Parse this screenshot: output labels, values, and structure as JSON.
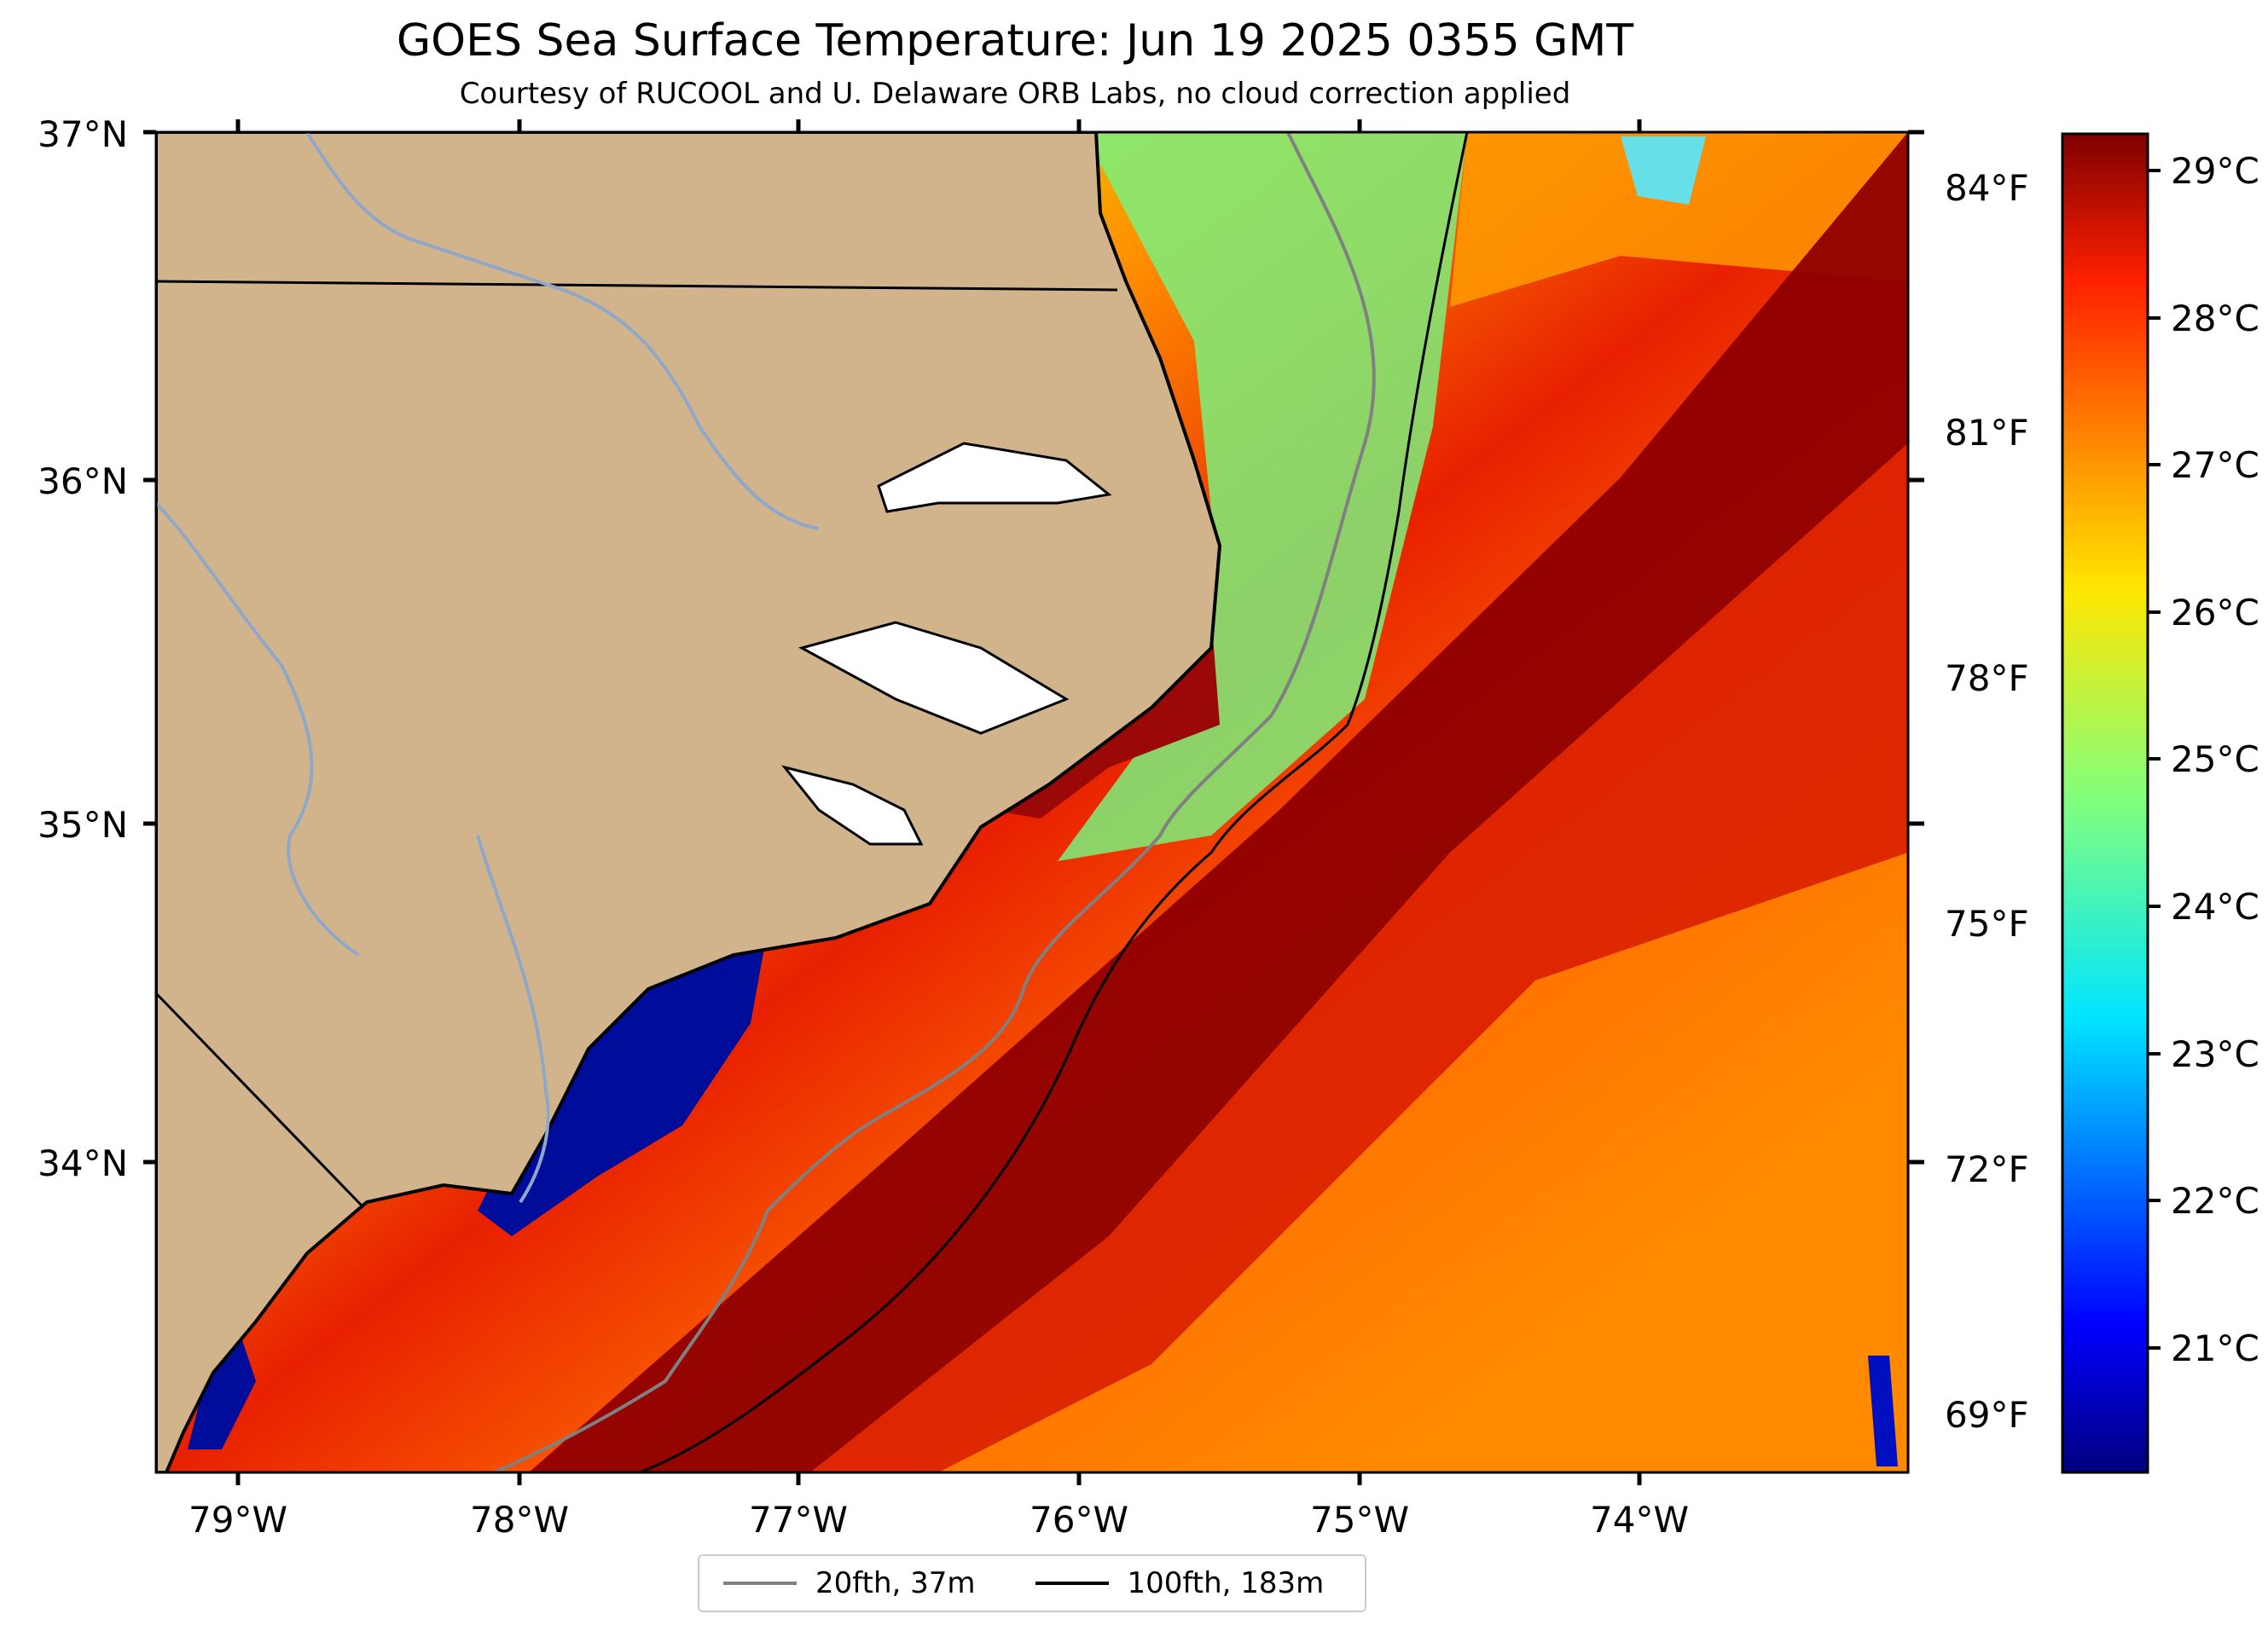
{
  "title": "GOES Sea Surface Temperature: Jun 19 2025 0355 GMT",
  "subtitle": "Courtesy of RUCOOL and U. Delaware ORB Labs, no cloud correction applied",
  "map": {
    "lat_labels": [
      "37°N",
      "36°N",
      "35°N",
      "34°N"
    ],
    "lon_labels": [
      "79°W",
      "78°W",
      "77°W",
      "76°W",
      "75°W",
      "74°W"
    ],
    "fahrenheit_labels": [
      "84°F",
      "81°F",
      "78°F",
      "75°F",
      "72°F",
      "69°F"
    ],
    "extent": {
      "lon_min": -79.28,
      "lon_max": -73.08,
      "lat_min": 33.15,
      "lat_max": 37.0
    },
    "colors": {
      "land": "#d2b48c",
      "coast": "#000000",
      "rivers": "#8fa8c8",
      "contour_20fth": "#808080",
      "contour_100fth": "#000000"
    }
  },
  "colorbar": {
    "labels": [
      "29°C",
      "28°C",
      "27°C",
      "26°C",
      "25°C",
      "24°C",
      "23°C",
      "22°C",
      "21°C"
    ],
    "colormap": "jet",
    "range_c": [
      20.3,
      29.4
    ]
  },
  "legend": {
    "items": [
      {
        "label": "20fth, 37m",
        "color": "#808080"
      },
      {
        "label": "100fth, 183m",
        "color": "#000000"
      }
    ]
  }
}
